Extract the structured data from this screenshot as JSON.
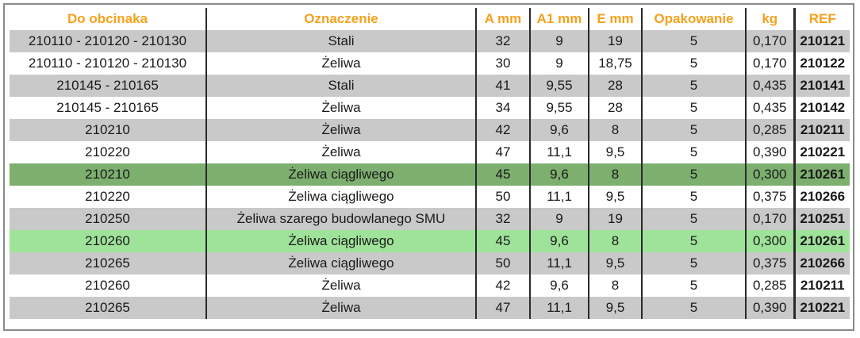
{
  "colors": {
    "header_text": "#f5a11c",
    "row_gray": "#c9c9c9",
    "row_white": "#ffffff",
    "row_green_dark": "#7daf6f",
    "row_green_light": "#9fe39a"
  },
  "headers": [
    "Do obcinaka",
    "Oznaczenie",
    "A mm",
    "A1 mm",
    "E mm",
    "Opakowanie",
    "kg",
    "REF"
  ],
  "rows": [
    {
      "style": "gray",
      "cells": [
        "210110 - 210120 - 210130",
        "Stali",
        "32",
        "9",
        "19",
        "5",
        "0,170",
        "210121"
      ]
    },
    {
      "style": "white",
      "cells": [
        "210110 - 210120 - 210130",
        "Żeliwa",
        "30",
        "9",
        "18,75",
        "5",
        "0,170",
        "210122"
      ]
    },
    {
      "style": "gray",
      "cells": [
        "210145 - 210165",
        "Stali",
        "41",
        "9,55",
        "28",
        "5",
        "0,435",
        "210141"
      ]
    },
    {
      "style": "white",
      "cells": [
        "210145 - 210165",
        "Żeliwa",
        "34",
        "9,55",
        "28",
        "5",
        "0,435",
        "210142"
      ]
    },
    {
      "style": "gray",
      "cells": [
        "210210",
        "Żeliwa",
        "42",
        "9,6",
        "8",
        "5",
        "0,285",
        "210211"
      ]
    },
    {
      "style": "white",
      "cells": [
        "210220",
        "Żeliwa",
        "47",
        "11,1",
        "9,5",
        "5",
        "0,390",
        "210221"
      ]
    },
    {
      "style": "green-dark",
      "cells": [
        "210210",
        "Żeliwa ciągliwego",
        "45",
        "9,6",
        "8",
        "5",
        "0,300",
        "210261"
      ]
    },
    {
      "style": "white",
      "cells": [
        "210220",
        "Żeliwa ciągliwego",
        "50",
        "11,1",
        "9,5",
        "5",
        "0,375",
        "210266"
      ]
    },
    {
      "style": "gray",
      "cells": [
        "210250",
        "Żeliwa szarego budowlanego SMU",
        "32",
        "9",
        "19",
        "5",
        "0,170",
        "210251"
      ]
    },
    {
      "style": "green-light",
      "cells": [
        "210260",
        "Żeliwa ciągliwego",
        "45",
        "9,6",
        "8",
        "5",
        "0,300",
        "210261"
      ]
    },
    {
      "style": "gray",
      "cells": [
        "210265",
        "Żeliwa ciągliwego",
        "50",
        "11,1",
        "9,5",
        "5",
        "0,375",
        "210266"
      ]
    },
    {
      "style": "white",
      "cells": [
        "210260",
        "Żeliwa",
        "42",
        "9,6",
        "8",
        "5",
        "0,285",
        "210211"
      ]
    },
    {
      "style": "gray",
      "cells": [
        "210265",
        "Żeliwa",
        "47",
        "11,1",
        "9,5",
        "5",
        "0,390",
        "210221"
      ]
    }
  ]
}
